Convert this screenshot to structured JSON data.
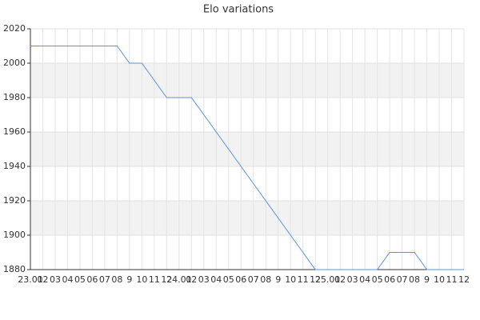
{
  "chart_data": {
    "type": "line",
    "title": "Elo variations",
    "categories": [
      "23.01",
      "02",
      "03",
      "04",
      "05",
      "06",
      "07",
      "08",
      "9",
      "10",
      "11",
      "12",
      "24.01",
      "02",
      "03",
      "04",
      "05",
      "06",
      "07",
      "08",
      "9",
      "10",
      "11",
      "12",
      "25.01",
      "02",
      "03",
      "04",
      "05",
      "06",
      "07",
      "08",
      "9",
      "10",
      "11",
      "12"
    ],
    "series": [
      {
        "name": "Elo",
        "color": "#5b8fe0",
        "values": [
          2010,
          2010,
          2010,
          2010,
          2010,
          2010,
          2010,
          2010,
          2000,
          2000,
          1990,
          1980,
          1980,
          1980,
          1970,
          1960,
          1950,
          1940,
          1930,
          1920,
          1910,
          1900,
          1890,
          1880,
          1880,
          1880,
          1880,
          1880,
          1880,
          1890,
          1890,
          1890,
          1880,
          1880,
          1880,
          1880
        ]
      }
    ],
    "ylim": [
      1880,
      2020
    ],
    "yticks": [
      1880,
      1900,
      1920,
      1940,
      1960,
      1980,
      2000,
      2020
    ],
    "grid": true
  }
}
